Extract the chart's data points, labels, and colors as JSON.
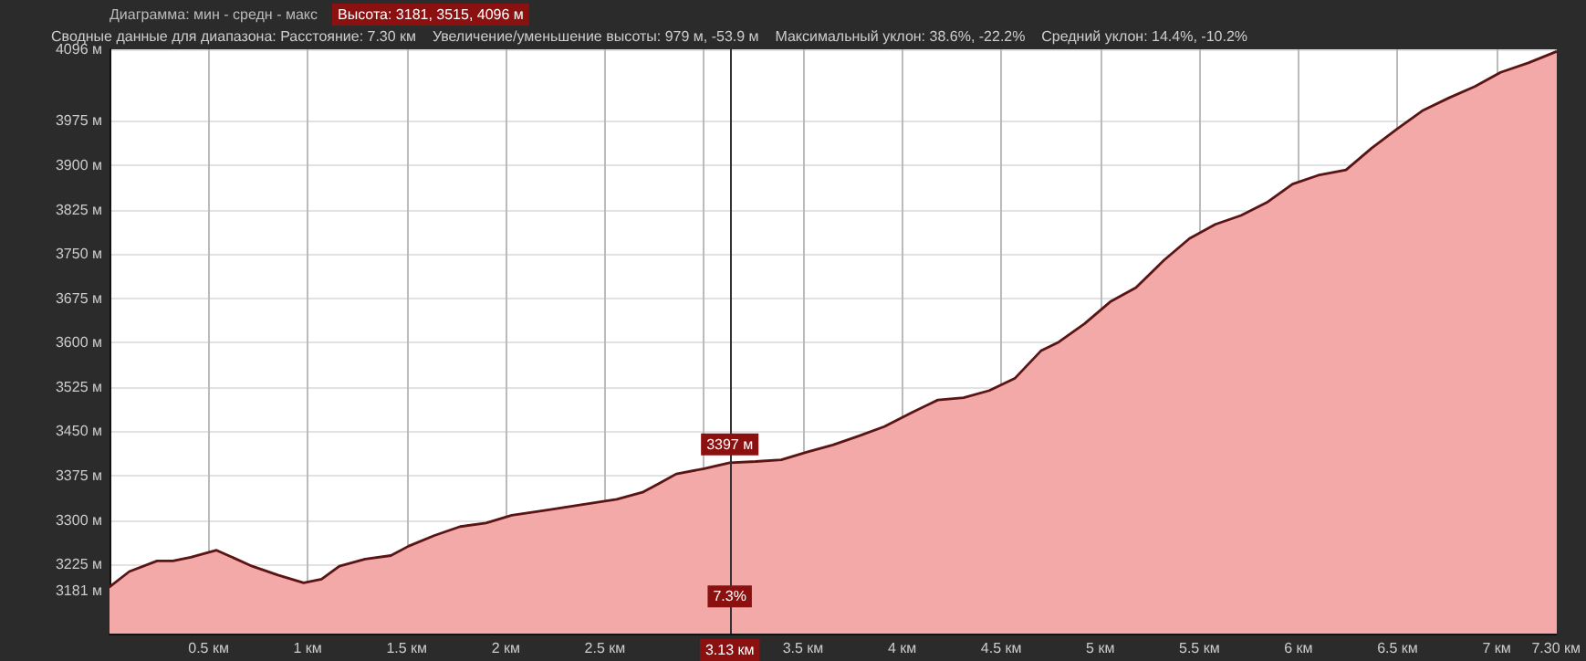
{
  "chart_data": {
    "type": "area",
    "title": "Диаграмма: мин - средн - макс",
    "subtitle": "Высота: 3181, 3515, 4096 м",
    "annotations": [
      "Сводные данные для диапазона: Расстояние: 7.30 км",
      "Увеличение/уменьшение высоты: 979 м, -53.9 м",
      "Максимальный уклон: 38.6%, -22.2%",
      "Средний уклон: 14.4%, -10.2%",
      {
        "text": "3397 м",
        "x": 3.13,
        "y": 3397
      },
      {
        "text": "7.3%",
        "x": 3.13,
        "y": 3140
      }
    ],
    "x": [
      0,
      0.1,
      0.24,
      0.32,
      0.41,
      0.54,
      0.6,
      0.72,
      0.85,
      0.98,
      1.07,
      1.16,
      1.29,
      1.42,
      1.51,
      1.64,
      1.77,
      1.9,
      2.03,
      2.21,
      2.38,
      2.56,
      2.69,
      2.78,
      2.86,
      3.0,
      3.13,
      3.26,
      3.39,
      3.52,
      3.65,
      3.78,
      3.91,
      4.05,
      4.18,
      4.31,
      4.44,
      4.57,
      4.7,
      4.79,
      4.92,
      5.05,
      5.18,
      5.32,
      5.45,
      5.58,
      5.71,
      5.84,
      5.97,
      6.1,
      6.24,
      6.37,
      6.5,
      6.63,
      6.76,
      6.89,
      7.02,
      7.16,
      7.3
    ],
    "series": [
      {
        "color": "#f4a9a9",
        "values": [
          3187,
          3213,
          3231,
          3231,
          3237,
          3249,
          3240,
          3222,
          3207,
          3194,
          3200,
          3222,
          3234,
          3240,
          3256,
          3274,
          3289,
          3295,
          3308,
          3317,
          3326,
          3335,
          3347,
          3363,
          3378,
          3387,
          3397,
          3399,
          3402,
          3415,
          3427,
          3442,
          3458,
          3482,
          3503,
          3507,
          3519,
          3540,
          3586,
          3601,
          3632,
          3669,
          3693,
          3739,
          3776,
          3800,
          3815,
          3837,
          3868,
          3883,
          3892,
          3929,
          3962,
          3993,
          4014,
          4033,
          4057,
          4073,
          4092
        ]
      }
    ],
    "xlim": [
      0,
      7.3
    ],
    "xticks": [
      {
        "value": 0.5,
        "label": "0.5 км"
      },
      {
        "value": 1,
        "label": "1 км"
      },
      {
        "value": 1.5,
        "label": "1.5 км"
      },
      {
        "value": 2,
        "label": "2 км"
      },
      {
        "value": 2.5,
        "label": "2.5 км"
      },
      {
        "value": 3,
        "label": null
      },
      {
        "value": 3.5,
        "label": "3.5 км"
      },
      {
        "value": 4,
        "label": "4 км"
      },
      {
        "value": 4.5,
        "label": "4.5 км"
      },
      {
        "value": 5,
        "label": "5 км"
      },
      {
        "value": 5.5,
        "label": "5.5 км"
      },
      {
        "value": 6,
        "label": "6 км"
      },
      {
        "value": 6.5,
        "label": "6.5 км"
      },
      {
        "value": 7,
        "label": "7 км"
      },
      {
        "value": 7.3,
        "label": "7.30 км"
      }
    ],
    "ylim": [
      3108,
      4096
    ],
    "yticks": [
      {
        "value": 3181,
        "label": "3181 м"
      },
      {
        "value": 3225,
        "label": "3225 м"
      },
      {
        "value": 3300,
        "label": "3300 м"
      },
      {
        "value": 3375,
        "label": "3375 м"
      },
      {
        "value": 3450,
        "label": "3450 м"
      },
      {
        "value": 3525,
        "label": "3525 м"
      },
      {
        "value": 3600,
        "label": "3600 м"
      },
      {
        "value": 3675,
        "label": "3675 м"
      },
      {
        "value": 3750,
        "label": "3750 м"
      },
      {
        "value": 3825,
        "label": "3825 м"
      },
      {
        "value": 3900,
        "label": "3900 м"
      },
      {
        "value": 3975,
        "label": "3975 м"
      },
      {
        "value": 4096,
        "label": "4096 м"
      }
    ],
    "ref_lines": [
      {
        "axis": "x",
        "value": 3.13,
        "label": "3.13 км"
      }
    ],
    "grid": true,
    "marker": "none"
  }
}
